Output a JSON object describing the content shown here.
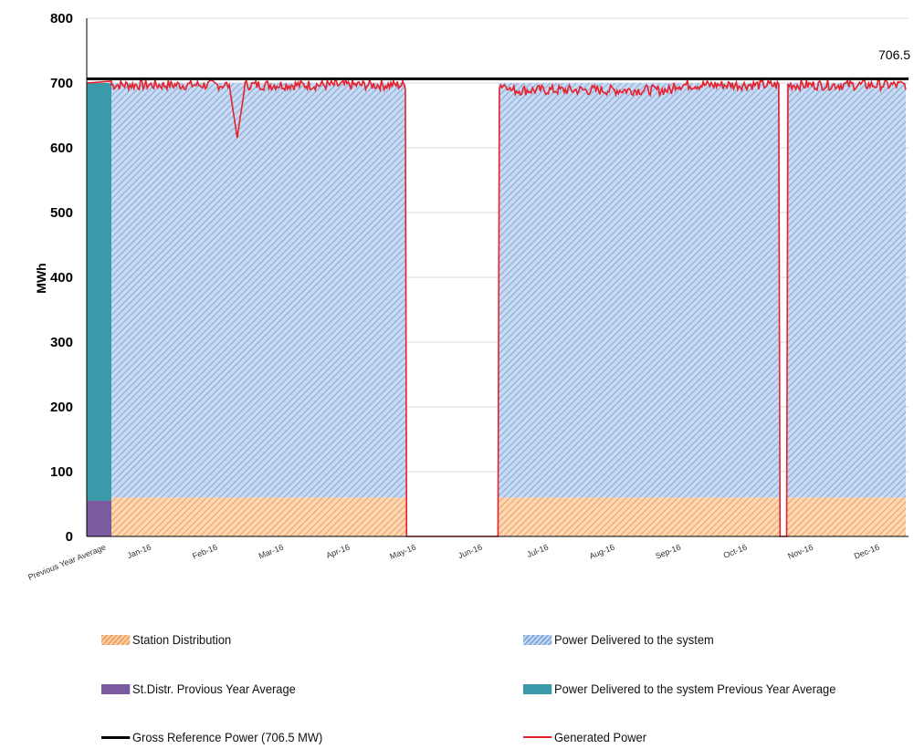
{
  "chart_data": {
    "type": "area",
    "title": "",
    "xlabel": "",
    "ylabel": "MWh",
    "ylim": [
      0,
      800
    ],
    "yticks": [
      0,
      100,
      200,
      300,
      400,
      500,
      600,
      700,
      800
    ],
    "categories": [
      "Previous Year Average",
      "Jan-16",
      "Feb-16",
      "Mar-16",
      "Apr-16",
      "May-16",
      "Jun-16",
      "Jul-16",
      "Aug-16",
      "Sep-16",
      "Oct-16",
      "Nov-16",
      "Dec-16"
    ],
    "grid": true,
    "reference_line": {
      "name": "Gross Reference Power (706.5 MW)",
      "value": 706.5,
      "label": "706.5",
      "color": "#000000"
    },
    "series": [
      {
        "name": "Station Distribution",
        "kind": "area-hatched",
        "color": "#f0a060",
        "value": 60
      },
      {
        "name": "Power Delivered to the system",
        "kind": "area-hatched",
        "color": "#7ea8dc",
        "value": 700
      },
      {
        "name": "St.Distr. Provious Year Average",
        "kind": "bar",
        "color": "#7b5aa0",
        "value": 55
      },
      {
        "name": "Power Delivered to the system Previous Year Average",
        "kind": "bar",
        "color": "#3a9aaa",
        "value": 700
      },
      {
        "name": "Generated Power",
        "kind": "line",
        "color": "#e8202a"
      }
    ],
    "outages": [
      {
        "from_month": 4.45,
        "to_month": 5.85
      },
      {
        "from_month": 10.1,
        "to_month": 10.2
      }
    ],
    "dips": [
      {
        "month": 1.9,
        "value": 615
      }
    ]
  },
  "legend": [
    {
      "label": "Station Distribution",
      "swatch": "sw-orange"
    },
    {
      "label": "Power Delivered to the system",
      "swatch": "sw-blue"
    },
    {
      "label": "St.Distr. Provious Year Average",
      "swatch": "sw-purple"
    },
    {
      "label": "Power Delivered to the system Previous Year Average",
      "swatch": "sw-teal"
    },
    {
      "label": "Gross Reference Power (706.5 MW)",
      "swatch": "sw-line-black"
    },
    {
      "label": "Generated Power",
      "swatch": "sw-line-red"
    }
  ]
}
